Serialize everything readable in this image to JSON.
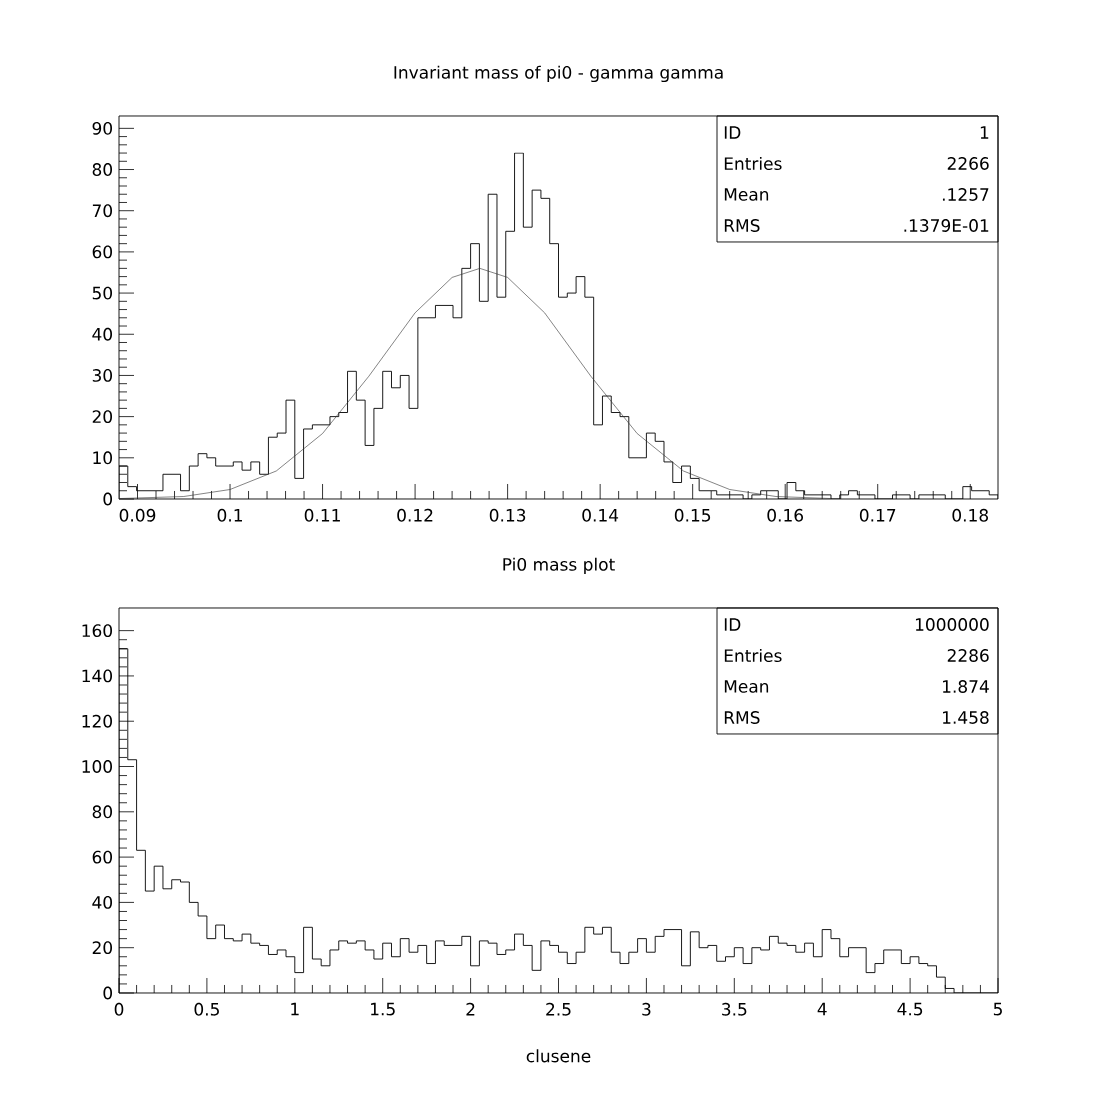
{
  "chart_data": [
    {
      "type": "histogram",
      "title": "Invariant mass of pi0 - gamma gamma",
      "color": "#000000",
      "bins": [
        0.088,
        0.08895,
        0.0899,
        0.09085,
        0.0918,
        0.09275,
        0.0937,
        0.09465,
        0.0956,
        0.09655,
        0.0975,
        0.09845,
        0.0994,
        0.10035,
        0.1013,
        0.10225,
        0.1032,
        0.10415,
        0.1051,
        0.10605,
        0.107,
        0.10795,
        0.1089,
        0.10985,
        0.1108,
        0.11175,
        0.1127,
        0.11365,
        0.1146,
        0.11555,
        0.1165,
        0.11745,
        0.1184,
        0.11935,
        0.1203,
        0.12125,
        0.1222,
        0.12315,
        0.1241,
        0.12505,
        0.126,
        0.12695,
        0.1279,
        0.12885,
        0.1298,
        0.13075,
        0.1317,
        0.13265,
        0.1336,
        0.13455,
        0.1355,
        0.13645,
        0.1374,
        0.13835,
        0.1393,
        0.14025,
        0.1412,
        0.14215,
        0.1431,
        0.14405,
        0.145,
        0.14595,
        0.1469,
        0.14785,
        0.1488,
        0.14975,
        0.1507,
        0.15165,
        0.1526,
        0.15355,
        0.1545,
        0.15545,
        0.1564,
        0.15735,
        0.1583,
        0.15925,
        0.1602,
        0.16115,
        0.1621,
        0.16305,
        0.164,
        0.16495,
        0.1659,
        0.16685,
        0.1678,
        0.16875,
        0.1697,
        0.17065,
        0.1716,
        0.17255,
        0.1735,
        0.17445,
        0.1754,
        0.17635,
        0.1773,
        0.17825,
        0.1792,
        0.18015,
        0.1811,
        0.18205,
        0.183
      ],
      "values": [
        8,
        3,
        2,
        2,
        2,
        6,
        6,
        2,
        8,
        11,
        10,
        8,
        8,
        9,
        7,
        9,
        6,
        15,
        16,
        24,
        5,
        17,
        18,
        18,
        20,
        21,
        31,
        24,
        13,
        22,
        31,
        27,
        30,
        22,
        44,
        44,
        47,
        47,
        44,
        56,
        62,
        48,
        74,
        49,
        65,
        84,
        66,
        75,
        73,
        62,
        49,
        50,
        54,
        49,
        18,
        25,
        21,
        20,
        10,
        10,
        16,
        14,
        9,
        4,
        8,
        5,
        2,
        2,
        1,
        1,
        1,
        0,
        1,
        2,
        2,
        0,
        4,
        2,
        1,
        1,
        1,
        0,
        1,
        2,
        1,
        1,
        0,
        0,
        1,
        1,
        0,
        1,
        1,
        1,
        0,
        0,
        3,
        2,
        2,
        1
      ],
      "series": [
        {
          "type": "line",
          "color": "#333333",
          "x": [
            0.088,
            0.095,
            0.1,
            0.105,
            0.11,
            0.115,
            0.12,
            0.124,
            0.127,
            0.13,
            0.134,
            0.139,
            0.144,
            0.149,
            0.154,
            0.159,
            0.165
          ],
          "values": [
            0.1,
            0.6,
            2.3,
            6.8,
            15.9,
            29.8,
            45.2,
            53.8,
            56,
            53.8,
            45.2,
            29.8,
            15.9,
            6.8,
            2.3,
            0.6,
            0.1
          ]
        }
      ],
      "xlim": [
        0.088,
        0.183
      ],
      "ylim": [
        0,
        93
      ],
      "xticks": [
        0.09,
        0.1,
        0.11,
        0.12,
        0.13,
        0.14,
        0.15,
        0.16,
        0.17,
        0.18
      ],
      "yticks": [
        0,
        10,
        20,
        30,
        40,
        50,
        60,
        70,
        80,
        90
      ],
      "annotations": [
        "ID",
        "1",
        "Entries",
        "2266",
        "Mean",
        ".1257",
        "RMS",
        ".1379E-01"
      ]
    },
    {
      "type": "histogram",
      "title": "Pi0 mass plot",
      "xlabel": "clusene",
      "color": "#000000",
      "bins": [
        0,
        0.05,
        0.1,
        0.15,
        0.2,
        0.25,
        0.3,
        0.35,
        0.4,
        0.45,
        0.5,
        0.55,
        0.6,
        0.65,
        0.7,
        0.75,
        0.8,
        0.85,
        0.9,
        0.95,
        1,
        1.05,
        1.1,
        1.15,
        1.2,
        1.25,
        1.3,
        1.35,
        1.4,
        1.45,
        1.5,
        1.55,
        1.6,
        1.65,
        1.7,
        1.75,
        1.8,
        1.85,
        1.9,
        1.95,
        2,
        2.05,
        2.1,
        2.15,
        2.2,
        2.25,
        2.3,
        2.35,
        2.4,
        2.45,
        2.5,
        2.55,
        2.6,
        2.65,
        2.7,
        2.75,
        2.8,
        2.85,
        2.9,
        2.95,
        3,
        3.05,
        3.1,
        3.15,
        3.2,
        3.25,
        3.3,
        3.35,
        3.4,
        3.45,
        3.5,
        3.55,
        3.6,
        3.65,
        3.7,
        3.75,
        3.8,
        3.85,
        3.9,
        3.95,
        4,
        4.05,
        4.1,
        4.15,
        4.2,
        4.25,
        4.3,
        4.35,
        4.4,
        4.45,
        4.5,
        4.55,
        4.6,
        4.65,
        4.7,
        4.75,
        4.8,
        4.85,
        4.9,
        4.95,
        5
      ],
      "values": [
        152,
        103,
        63,
        45,
        56,
        46,
        50,
        49,
        40,
        34,
        24,
        30,
        24,
        23,
        26,
        22,
        21,
        17,
        19,
        16,
        9,
        29,
        15,
        12,
        19,
        23,
        22,
        23,
        19,
        15,
        22,
        16,
        24,
        18,
        21,
        13,
        23,
        21,
        21,
        25,
        12,
        23,
        22,
        17,
        19,
        26,
        21,
        10,
        23,
        21,
        18,
        13,
        18,
        29,
        26,
        29,
        18,
        13,
        18,
        24,
        18,
        25,
        28,
        28,
        12,
        27,
        20,
        21,
        14,
        16,
        20,
        13,
        20,
        19,
        25,
        22,
        21,
        18,
        22,
        16,
        28,
        24,
        16,
        20,
        20,
        9,
        13,
        19,
        19,
        13,
        16,
        13,
        12,
        7,
        2,
        0,
        0,
        0,
        0,
        0
      ],
      "xlim": [
        0,
        5
      ],
      "ylim": [
        0,
        170
      ],
      "xticks": [
        0,
        0.5,
        1,
        1.5,
        2,
        2.5,
        3,
        3.5,
        4,
        4.5,
        5
      ],
      "yticks": [
        0,
        20,
        40,
        60,
        80,
        100,
        120,
        140,
        160
      ],
      "annotations": [
        "ID",
        "1000000",
        "Entries",
        "2286",
        "Mean",
        "1.874",
        "RMS",
        "1.458"
      ]
    }
  ]
}
